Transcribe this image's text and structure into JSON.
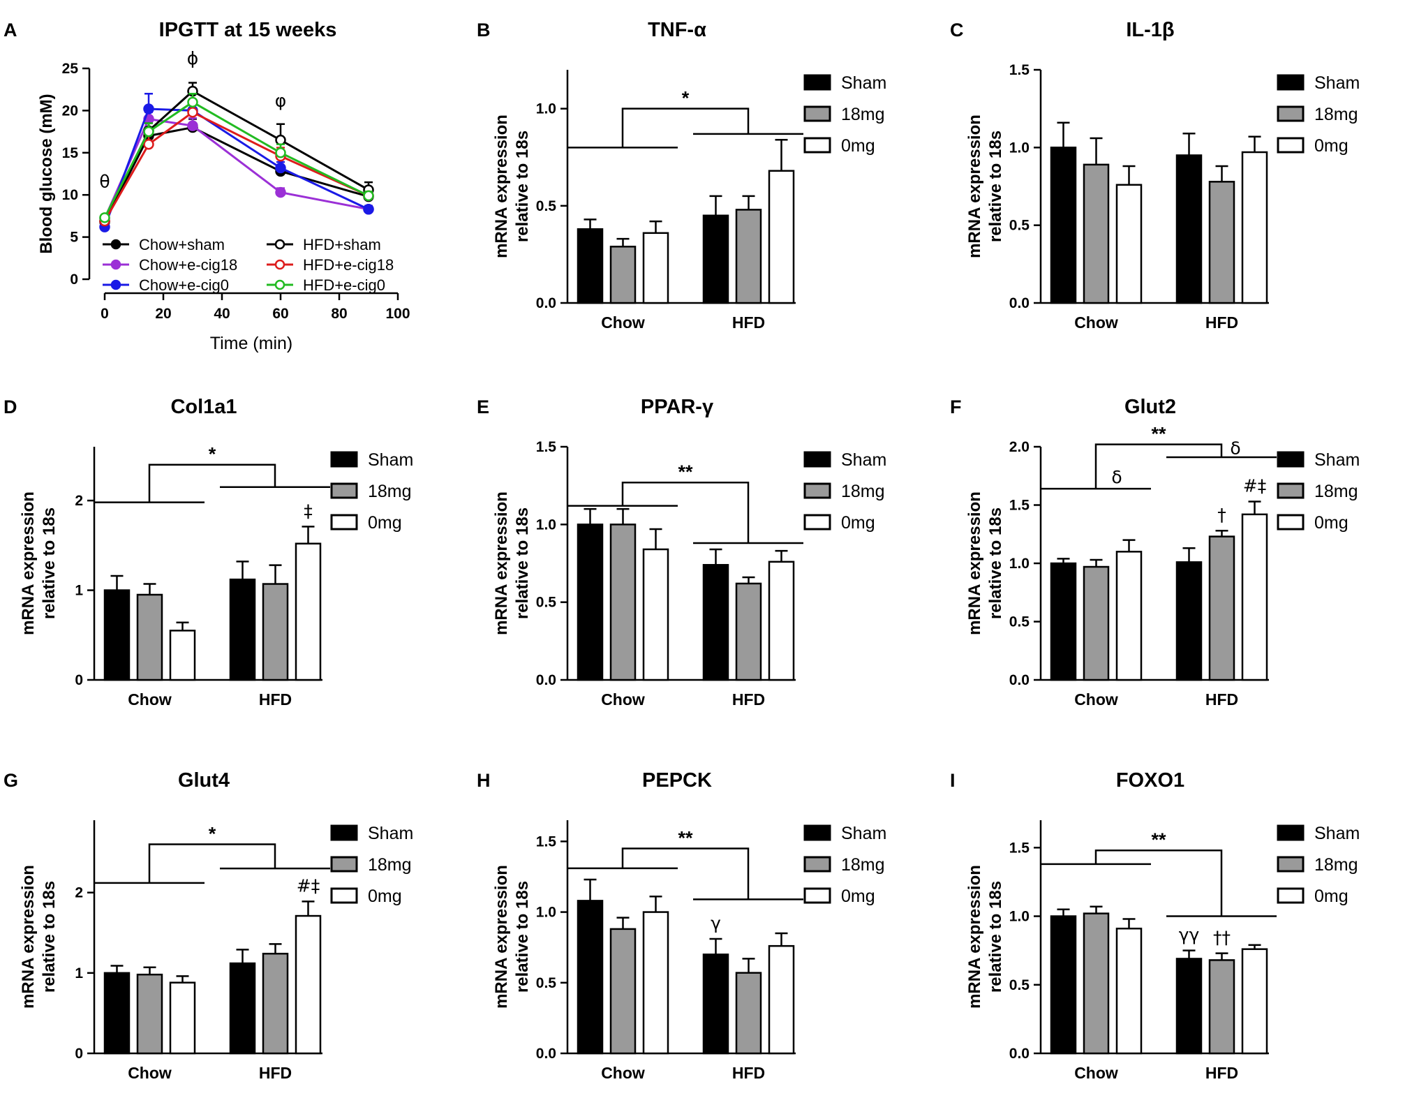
{
  "figure": {
    "legend_groups": [
      "Sham",
      "18mg",
      "0mg"
    ],
    "group_fills": [
      "#000000",
      "#9a9a9a",
      "#ffffff"
    ],
    "ylabel_line1": "mRNA expression",
    "ylabel_line2": "relative to 18s"
  },
  "chart_data": [
    {
      "type": "line",
      "panel": "A",
      "title": "IPGTT at 15 weeks",
      "xlabel": "Time (min)",
      "ylabel": "Blood glucose (mM)",
      "xlim": [
        0,
        100
      ],
      "ylim": [
        0,
        25
      ],
      "xticks": [
        0,
        20,
        40,
        60,
        80,
        100
      ],
      "yticks": [
        0,
        5,
        10,
        15,
        20,
        25
      ],
      "x": [
        0,
        15,
        30,
        60,
        90
      ],
      "series": [
        {
          "name": "Chow+sham",
          "color": "#000000",
          "marker": "filled",
          "values": [
            6.8,
            17.0,
            18.0,
            12.8,
            9.8
          ],
          "errors": [
            0.3,
            1.0,
            1.0,
            0.6,
            0.4
          ]
        },
        {
          "name": "Chow+e-cig18",
          "color": "#9b30d6",
          "marker": "filled",
          "values": [
            7.2,
            19.0,
            18.2,
            10.3,
            8.3
          ],
          "errors": [
            0.3,
            0.8,
            0.9,
            0.5,
            0.4
          ]
        },
        {
          "name": "Chow+e-cig0",
          "color": "#1a1ae6",
          "marker": "filled",
          "values": [
            6.2,
            20.2,
            20.0,
            13.2,
            8.3
          ],
          "errors": [
            0.3,
            1.8,
            1.0,
            0.7,
            0.4
          ]
        },
        {
          "name": "HFD+sham",
          "color": "#000000",
          "marker": "open",
          "values": [
            6.9,
            17.6,
            22.3,
            16.5,
            10.6
          ],
          "errors": [
            0.3,
            0.9,
            1.0,
            1.9,
            0.9
          ]
        },
        {
          "name": "HFD+e-cig18",
          "color": "#dd1c1c",
          "marker": "open",
          "values": [
            6.9,
            16.0,
            19.8,
            14.6,
            9.9
          ],
          "errors": [
            0.3,
            1.2,
            1.0,
            1.0,
            0.5
          ]
        },
        {
          "name": "HFD+e-cig0",
          "color": "#22bb22",
          "marker": "open",
          "values": [
            7.3,
            17.5,
            21.0,
            15.0,
            9.9
          ],
          "errors": [
            0.3,
            1.0,
            1.0,
            1.0,
            0.5
          ]
        }
      ],
      "annotations": [
        {
          "text": "θ",
          "x": 0,
          "y": 10.9
        },
        {
          "text": "ϕ",
          "x": 30,
          "y": 25.5
        },
        {
          "text": "φ",
          "x": 60,
          "y": 20.5
        }
      ]
    },
    {
      "type": "bar",
      "panel": "B",
      "title": "TNF-α",
      "categories": [
        "Chow",
        "HFD"
      ],
      "ylim": [
        0,
        1.2
      ],
      "yticks": [
        "0.0",
        "0.5",
        "1.0"
      ],
      "series": [
        {
          "name": "Sham",
          "values": [
            0.38,
            0.45
          ],
          "errors": [
            0.05,
            0.1
          ]
        },
        {
          "name": "18mg",
          "values": [
            0.29,
            0.48
          ],
          "errors": [
            0.04,
            0.07
          ]
        },
        {
          "name": "0mg",
          "values": [
            0.36,
            0.68
          ],
          "errors": [
            0.06,
            0.16
          ]
        }
      ],
      "bracket": {
        "sig": "*",
        "left_y": 0.8,
        "right_y": 0.87,
        "top_y": 1.0
      },
      "annotations": []
    },
    {
      "type": "bar",
      "panel": "C",
      "title": "IL-1β",
      "categories": [
        "Chow",
        "HFD"
      ],
      "ylim": [
        0,
        1.5
      ],
      "yticks": [
        "0.0",
        "0.5",
        "1.0",
        "1.5"
      ],
      "series": [
        {
          "name": "Sham",
          "values": [
            1.0,
            0.95
          ],
          "errors": [
            0.16,
            0.14
          ]
        },
        {
          "name": "18mg",
          "values": [
            0.89,
            0.78
          ],
          "errors": [
            0.17,
            0.1
          ]
        },
        {
          "name": "0mg",
          "values": [
            0.76,
            0.97
          ],
          "errors": [
            0.12,
            0.1
          ]
        }
      ],
      "bracket": null,
      "annotations": []
    },
    {
      "type": "bar",
      "panel": "D",
      "title": "Col1a1",
      "categories": [
        "Chow",
        "HFD"
      ],
      "ylim": [
        0,
        2.6
      ],
      "yticks": [
        "0",
        "1",
        "2"
      ],
      "series": [
        {
          "name": "Sham",
          "values": [
            1.0,
            1.12
          ],
          "errors": [
            0.16,
            0.2
          ]
        },
        {
          "name": "18mg",
          "values": [
            0.95,
            1.07
          ],
          "errors": [
            0.12,
            0.21
          ]
        },
        {
          "name": "0mg",
          "values": [
            0.55,
            1.52
          ],
          "errors": [
            0.09,
            0.19
          ]
        }
      ],
      "bracket": {
        "sig": "*",
        "left_y": 1.98,
        "right_y": 2.15,
        "top_y": 2.4
      },
      "annotations": [
        {
          "text": "‡",
          "series": 2,
          "category": 1
        }
      ]
    },
    {
      "type": "bar",
      "panel": "E",
      "title": "PPAR-γ",
      "categories": [
        "Chow",
        "HFD"
      ],
      "ylim": [
        0,
        1.5
      ],
      "yticks": [
        "0.0",
        "0.5",
        "1.0",
        "1.5"
      ],
      "series": [
        {
          "name": "Sham",
          "values": [
            1.0,
            0.74
          ],
          "errors": [
            0.1,
            0.1
          ]
        },
        {
          "name": "18mg",
          "values": [
            1.0,
            0.62
          ],
          "errors": [
            0.1,
            0.04
          ]
        },
        {
          "name": "0mg",
          "values": [
            0.84,
            0.76
          ],
          "errors": [
            0.13,
            0.07
          ]
        }
      ],
      "bracket": {
        "sig": "**",
        "left_y": 1.12,
        "right_y": 0.88,
        "top_y": 1.27
      },
      "annotations": []
    },
    {
      "type": "bar",
      "panel": "F",
      "title": "Glut2",
      "categories": [
        "Chow",
        "HFD"
      ],
      "ylim": [
        0,
        2.0
      ],
      "yticks": [
        "0.0",
        "0.5",
        "1.0",
        "1.5",
        "2.0"
      ],
      "series": [
        {
          "name": "Sham",
          "values": [
            1.0,
            1.01
          ],
          "errors": [
            0.04,
            0.12
          ]
        },
        {
          "name": "18mg",
          "values": [
            0.97,
            1.23
          ],
          "errors": [
            0.06,
            0.05
          ]
        },
        {
          "name": "0mg",
          "values": [
            1.1,
            1.42
          ],
          "errors": [
            0.1,
            0.11
          ]
        }
      ],
      "bracket": {
        "sig": "**",
        "left_y": 1.64,
        "right_y": 1.91,
        "top_y": 2.02,
        "left_label": "δ",
        "right_label": "δ"
      },
      "annotations": [
        {
          "text": "†",
          "series": 1,
          "category": 1
        },
        {
          "text": "#‡",
          "series": 2,
          "category": 1
        }
      ]
    },
    {
      "type": "bar",
      "panel": "G",
      "title": "Glut4",
      "categories": [
        "Chow",
        "HFD"
      ],
      "ylim": [
        0,
        2.9
      ],
      "yticks": [
        "0",
        "1",
        "2"
      ],
      "series": [
        {
          "name": "Sham",
          "values": [
            1.0,
            1.12
          ],
          "errors": [
            0.09,
            0.17
          ]
        },
        {
          "name": "18mg",
          "values": [
            0.98,
            1.24
          ],
          "errors": [
            0.09,
            0.12
          ]
        },
        {
          "name": "0mg",
          "values": [
            0.88,
            1.71
          ],
          "errors": [
            0.08,
            0.18
          ]
        }
      ],
      "bracket": {
        "sig": "*",
        "left_y": 2.12,
        "right_y": 2.3,
        "top_y": 2.6
      },
      "annotations": [
        {
          "text": "#‡",
          "series": 2,
          "category": 1
        }
      ]
    },
    {
      "type": "bar",
      "panel": "H",
      "title": "PEPCK",
      "categories": [
        "Chow",
        "HFD"
      ],
      "ylim": [
        0,
        1.65
      ],
      "yticks": [
        "0.0",
        "0.5",
        "1.0",
        "1.5"
      ],
      "series": [
        {
          "name": "Sham",
          "values": [
            1.08,
            0.7
          ],
          "errors": [
            0.15,
            0.11
          ]
        },
        {
          "name": "18mg",
          "values": [
            0.88,
            0.57
          ],
          "errors": [
            0.08,
            0.1
          ]
        },
        {
          "name": "0mg",
          "values": [
            1.0,
            0.76
          ],
          "errors": [
            0.11,
            0.09
          ]
        }
      ],
      "bracket": {
        "sig": "**",
        "left_y": 1.31,
        "right_y": 1.09,
        "top_y": 1.45
      },
      "annotations": [
        {
          "text": "γ",
          "series": 0,
          "category": 1
        }
      ]
    },
    {
      "type": "bar",
      "panel": "I",
      "title": "FOXO1",
      "categories": [
        "Chow",
        "HFD"
      ],
      "ylim": [
        0,
        1.7
      ],
      "yticks": [
        "0.0",
        "0.5",
        "1.0",
        "1.5"
      ],
      "series": [
        {
          "name": "Sham",
          "values": [
            1.0,
            0.69
          ],
          "errors": [
            0.05,
            0.06
          ]
        },
        {
          "name": "18mg",
          "values": [
            1.02,
            0.68
          ],
          "errors": [
            0.05,
            0.05
          ]
        },
        {
          "name": "0mg",
          "values": [
            0.91,
            0.76
          ],
          "errors": [
            0.07,
            0.03
          ]
        }
      ],
      "bracket": {
        "sig": "**",
        "left_y": 1.38,
        "right_y": 1.0,
        "top_y": 1.48
      },
      "annotations": [
        {
          "text": "γγ",
          "series": 0,
          "category": 1
        },
        {
          "text": "††",
          "series": 1,
          "category": 1
        }
      ]
    }
  ]
}
